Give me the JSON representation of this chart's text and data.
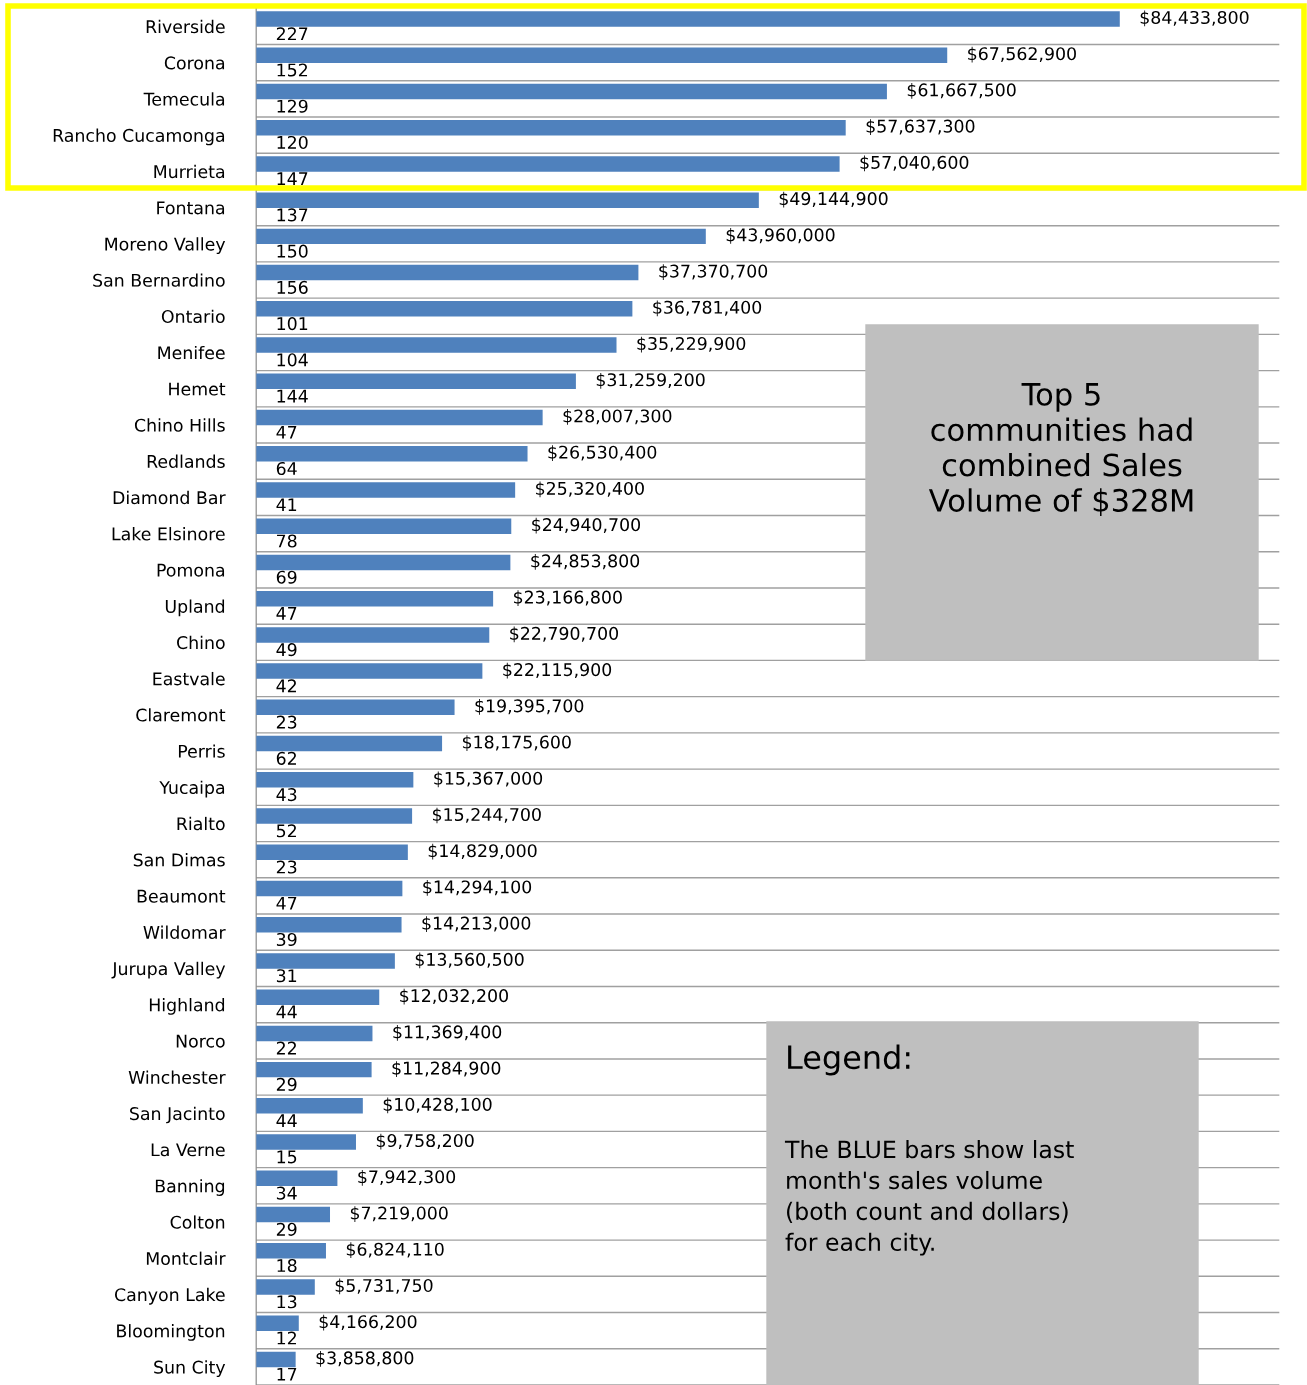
{
  "chart_data": {
    "type": "bar",
    "orientation": "horizontal",
    "categories": [
      "Riverside",
      "Corona",
      "Temecula",
      "Rancho Cucamonga",
      "Murrieta",
      "Fontana",
      "Moreno Valley",
      "San Bernardino",
      "Ontario",
      "Menifee",
      "Hemet",
      "Chino Hills",
      "Redlands",
      "Diamond Bar",
      "Lake Elsinore",
      "Pomona",
      "Upland",
      "Chino",
      "Eastvale",
      "Claremont",
      "Perris",
      "Yucaipa",
      "Rialto",
      "San Dimas",
      "Beaumont",
      "Wildomar",
      "Jurupa Valley",
      "Highland",
      "Norco",
      "Winchester",
      "San Jacinto",
      "La Verne",
      "Banning",
      "Colton",
      "Montclair",
      "Canyon Lake",
      "Bloomington",
      "Sun City"
    ],
    "series": [
      {
        "color": "#4f81bd",
        "values": [
          84433800,
          67562900,
          61667500,
          57637300,
          57040600,
          49144900,
          43960000,
          37370700,
          36781400,
          35229900,
          31259200,
          28007300,
          26530400,
          25320400,
          24940700,
          24853800,
          23166800,
          22790700,
          22115900,
          19395700,
          18175600,
          15367000,
          15244700,
          14829000,
          14294100,
          14213000,
          13560500,
          12032200,
          11369400,
          11284900,
          10428100,
          9758200,
          7942300,
          7219000,
          6824110,
          5731750,
          4166200,
          3858800
        ],
        "value_labels": [
          "$84,433,800",
          "$67,562,900",
          "$61,667,500",
          "$57,637,300",
          "$57,040,600",
          "$49,144,900",
          "$43,960,000",
          "$37,370,700",
          "$36,781,400",
          "$35,229,900",
          "$31,259,200",
          "$28,007,300",
          "$26,530,400",
          "$25,320,400",
          "$24,940,700",
          "$24,853,800",
          "$23,166,800",
          "$22,790,700",
          "$22,115,900",
          "$19,395,700",
          "$18,175,600",
          "$15,367,000",
          "$15,244,700",
          "$14,829,000",
          "$14,294,100",
          "$14,213,000",
          "$13,560,500",
          "$12,032,200",
          "$11,369,400",
          "$11,284,900",
          "$10,428,100",
          "$9,758,200",
          "$7,942,300",
          "$7,219,000",
          "$6,824,110",
          "$5,731,750",
          "$4,166,200",
          "$3,858,800"
        ]
      },
      {
        "color": "#c0504d",
        "values": [
          227,
          152,
          129,
          120,
          147,
          137,
          150,
          156,
          101,
          104,
          144,
          47,
          64,
          41,
          78,
          69,
          47,
          49,
          42,
          23,
          62,
          43,
          52,
          23,
          47,
          39,
          31,
          44,
          22,
          29,
          44,
          15,
          34,
          29,
          18,
          13,
          12,
          17
        ],
        "value_labels": [
          "227",
          "152",
          "129",
          "120",
          "147",
          "137",
          "150",
          "156",
          "101",
          "104",
          "144",
          "47",
          "64",
          "41",
          "78",
          "69",
          "47",
          "49",
          "42",
          "23",
          "62",
          "43",
          "52",
          "23",
          "47",
          "39",
          "31",
          "44",
          "22",
          "29",
          "44",
          "15",
          "34",
          "29",
          "18",
          "13",
          "12",
          "17"
        ]
      }
    ],
    "annotations": [
      "Top 5\ncommunities had\ncombined Sales\nVolume of $328M",
      "Legend:",
      "The BLUE bars show last\nmonth's sales volume\n(both count and dollars)\nfor each city."
    ],
    "grid": "y",
    "legend": false,
    "tick_labels": "y"
  }
}
